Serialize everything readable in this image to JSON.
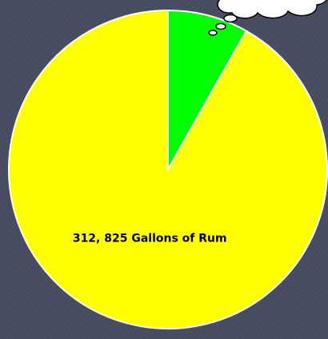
{
  "chart_data": {
    "type": "pie",
    "categories": [
      null,
      null
    ],
    "values": [
      27900,
      312825
    ],
    "value_labels": [
      null,
      "312, 825 Gallons of Rum"
    ],
    "colors": [
      "#00ff00",
      "#ffff00"
    ]
  }
}
